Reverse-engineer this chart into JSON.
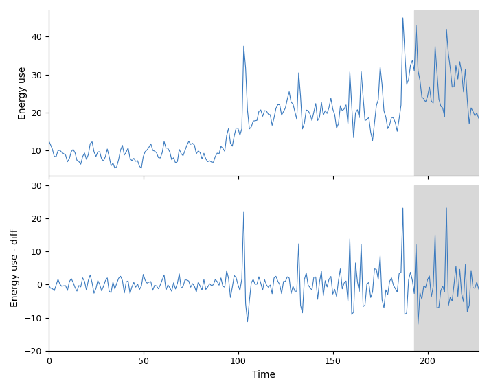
{
  "ylabel1": "Energy use",
  "ylabel2": "Energy use - diff",
  "xlabel": "Time",
  "shade_start": 193,
  "n_total": 228,
  "line_color": "#3a7abf",
  "shade_color": "#d8d8d8",
  "shade_alpha": 1.0,
  "figsize": [
    7.12,
    5.68
  ],
  "dpi": 100,
  "yticks1": [
    10,
    20,
    30,
    40
  ],
  "yticks2": [
    -20,
    -10,
    0,
    10,
    20,
    30
  ],
  "ylim2": [
    -20,
    30
  ],
  "xticks": [
    0,
    50,
    100,
    150,
    200
  ]
}
